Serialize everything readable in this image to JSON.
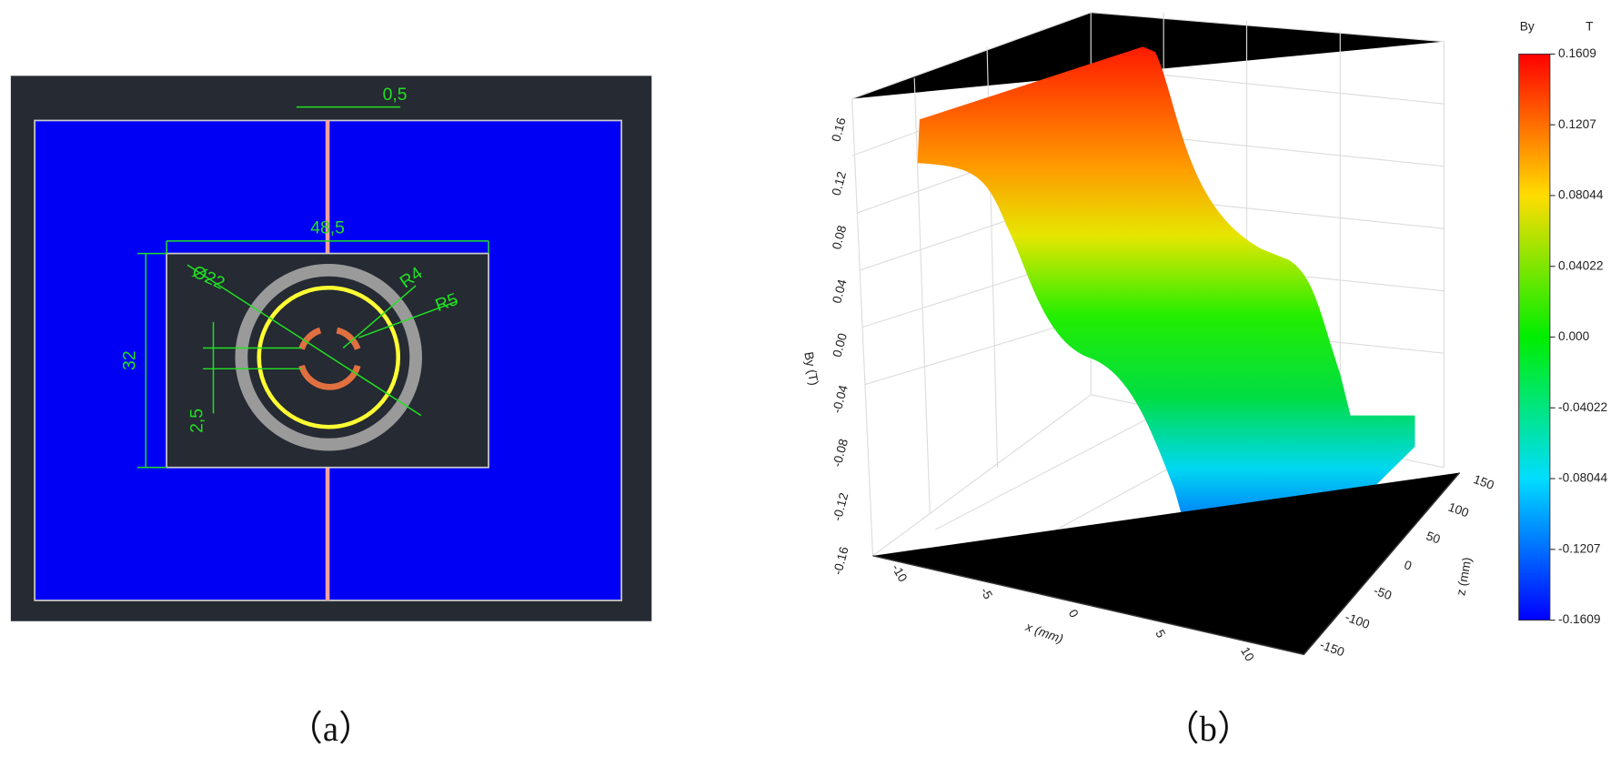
{
  "panel_a": {
    "caption": "（a）",
    "dimensions": [
      "0,5",
      "48,5",
      "32",
      "Ø22",
      "R4",
      "R5",
      "2,5"
    ]
  },
  "panel_b": {
    "caption": "（b）",
    "y_axis_label": "By (T)",
    "y_ticks": [
      "0.16",
      "0.12",
      "0.08",
      "0.04",
      "0.00",
      "-0.04",
      "-0.08",
      "-0.12",
      "-0.16"
    ],
    "x_axis_label": "x (mm)",
    "x_ticks": [
      "-10",
      "-5",
      "0",
      "5",
      "10"
    ],
    "z_axis_label": "z (mm)",
    "z_ticks": [
      "150",
      "100",
      "50",
      "0",
      "-50",
      "-100",
      "-150"
    ],
    "colorbar": {
      "title": "By",
      "unit": "T",
      "ticks": [
        "0.1609",
        "0.1207",
        "0.08044",
        "0.04022",
        "0.000",
        "-0.04022",
        "-0.08044",
        "-0.1207",
        "-0.1609"
      ]
    }
  }
}
